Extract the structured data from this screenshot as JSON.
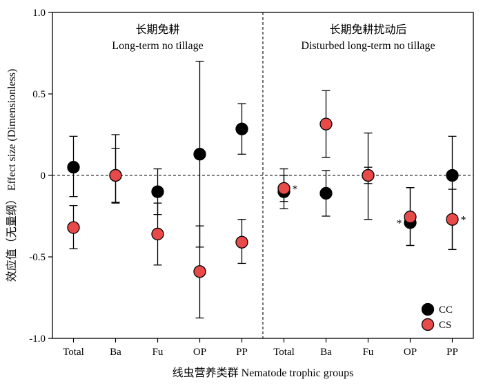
{
  "chart_data": {
    "type": "scatter",
    "xlabel": "线虫营养类群 Nematode trophic groups",
    "ylabel": "效应值（无量纲） Effect size (Dimensionless)",
    "ylim": [
      -1.0,
      1.0
    ],
    "y_ticks": [
      "1.0",
      "0.5",
      "0",
      "-0.5",
      "-1.0"
    ],
    "y_tick_values": [
      1.0,
      0.5,
      0,
      -0.5,
      -1.0
    ],
    "categories": [
      "Total",
      "Ba",
      "Fu",
      "OP",
      "PP",
      "Total",
      "Ba",
      "Fu",
      "OP",
      "PP"
    ],
    "panels": [
      {
        "title_cn": "长期免耕",
        "title_en": "Long-term no tillage"
      },
      {
        "title_cn": "长期免耕扰动后",
        "title_en": "Disturbed long-term no tillage"
      }
    ],
    "reference_line_y": 0,
    "grid": false,
    "legend_position": "bottom-right",
    "series": [
      {
        "name": "CC",
        "color": "#000000",
        "values": [
          0.05,
          0.0,
          -0.1,
          0.13,
          0.285,
          -0.1,
          -0.11,
          0.0,
          -0.29,
          0.0
        ],
        "err_high": [
          0.24,
          0.25,
          0.04,
          0.7,
          0.44,
          0.04,
          0.03,
          0.26,
          -0.075,
          0.24
        ],
        "err_low": [
          -0.13,
          -0.17,
          -0.24,
          -0.44,
          0.13,
          -0.205,
          -0.25,
          -0.27,
          -0.43,
          -0.455
        ]
      },
      {
        "name": "CS",
        "color": "#e84a4a",
        "values": [
          -0.32,
          0.0,
          -0.36,
          -0.59,
          -0.41,
          -0.08,
          0.315,
          0.0,
          -0.255,
          -0.27
        ],
        "err_high": [
          -0.185,
          0.165,
          -0.17,
          -0.31,
          -0.27,
          0.0,
          0.52,
          0.05,
          -0.075,
          -0.085
        ],
        "err_low": [
          -0.45,
          -0.165,
          -0.55,
          -0.875,
          -0.54,
          -0.16,
          0.11,
          -0.05,
          -0.43,
          -0.455
        ]
      }
    ],
    "annotations": [
      {
        "text": "*",
        "category_index": 5,
        "series": "CS",
        "side": "right"
      },
      {
        "text": "*",
        "category_index": 8,
        "series": "CC",
        "side": "left"
      },
      {
        "text": "*",
        "category_index": 9,
        "series": "CS",
        "side": "right"
      }
    ]
  }
}
